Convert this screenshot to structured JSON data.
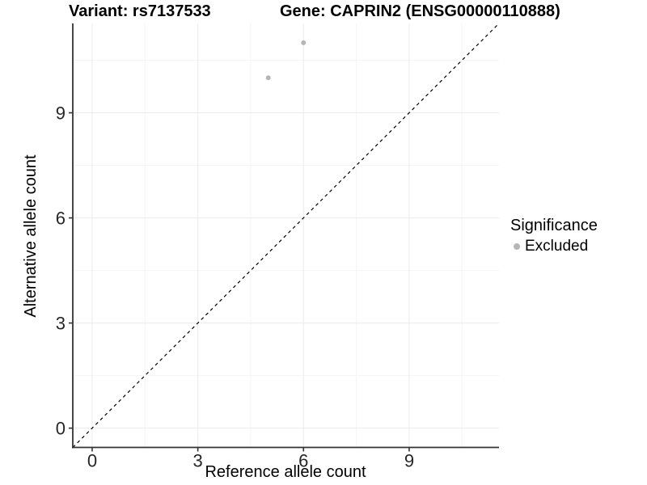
{
  "figure": {
    "title_left": "Variant: rs7137533",
    "title_right": "Gene: CAPRIN2 (ENSG00000110888)"
  },
  "chart_data": {
    "type": "scatter",
    "title_left": "Variant: rs7137533",
    "title_right": "Gene: CAPRIN2 (ENSG00000110888)",
    "xlabel": "Reference allele count",
    "ylabel": "Alternative allele count",
    "xlim": [
      -0.55,
      11.55
    ],
    "ylim": [
      -0.55,
      11.55
    ],
    "xticks": [
      0,
      3,
      6,
      9
    ],
    "yticks": [
      0,
      3,
      6,
      9
    ],
    "minor_xticks": [
      1.5,
      4.5,
      7.5,
      10.5
    ],
    "minor_yticks": [
      1.5,
      4.5,
      7.5,
      10.5
    ],
    "grid": true,
    "identity_line": {
      "equation": "y = x",
      "style": "dashed",
      "color": "#000000"
    },
    "series": [
      {
        "name": "Excluded",
        "color": "#b5b5b5",
        "points": [
          {
            "x": 5,
            "y": 10
          },
          {
            "x": 6,
            "y": 11
          }
        ]
      }
    ],
    "legend": {
      "title": "Significance",
      "position": "right",
      "items": [
        {
          "label": "Excluded",
          "color": "#b5b5b5"
        }
      ]
    },
    "colors": {
      "background": "#ffffff",
      "grid_major": "#ebebeb",
      "grid_minor": "#f5f5f5",
      "axis_line": "#333333",
      "tick_text": "#262626",
      "point": "#b5b5b5",
      "identity_line": "#000000"
    }
  }
}
